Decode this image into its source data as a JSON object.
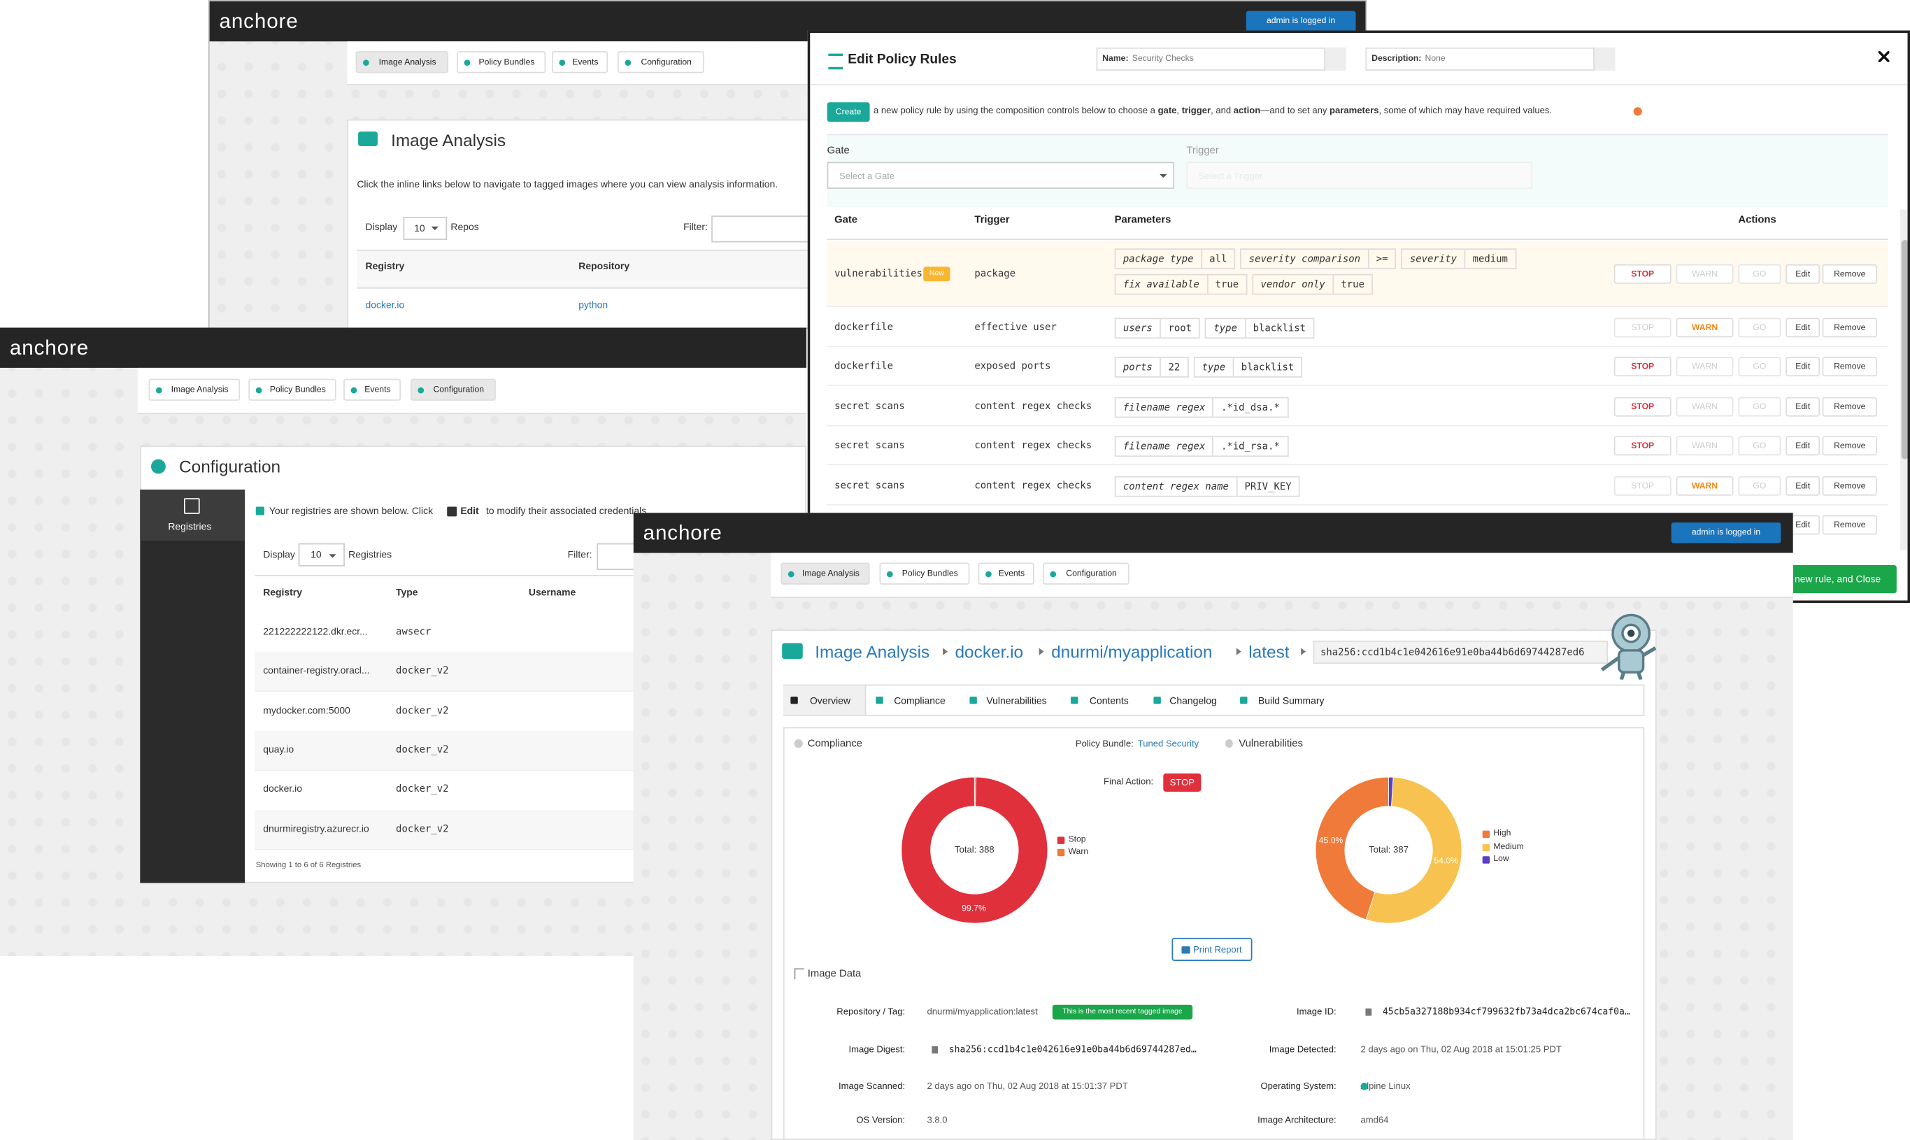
{
  "back": {
    "brand": "anchore",
    "user": "admin is logged in",
    "tabs": [
      "Image Analysis",
      "Policy Bundles",
      "Events",
      "Configuration"
    ],
    "title": "Image Analysis",
    "intro": "Click the inline links below to navigate to tagged images where you can view analysis information.",
    "display": "Display",
    "page_size": "10",
    "unit": "Repos",
    "filter": "Filter:",
    "columns": [
      "Registry",
      "Repository"
    ],
    "rows": [
      [
        "docker.io",
        "python"
      ]
    ]
  },
  "config": {
    "brand": "anchore",
    "tabs": [
      "Image Analysis",
      "Policy Bundles",
      "Events",
      "Configuration"
    ],
    "title": "Configuration",
    "sidebar": "Registries",
    "intro": [
      "Your registries are shown below. Click",
      "Edit",
      "to modify their associated credentials."
    ],
    "display": "Display",
    "page_size": "10",
    "unit": "Registries",
    "filter": "Filter:",
    "columns": [
      "Registry",
      "Type",
      "Username"
    ],
    "rows": [
      [
        "221222222122.dkr.ecr...",
        "awsecr"
      ],
      [
        "container-registry.oracl...",
        "docker_v2"
      ],
      [
        "mydocker.com:5000",
        "docker_v2"
      ],
      [
        "quay.io",
        "docker_v2"
      ],
      [
        "docker.io",
        "docker_v2"
      ],
      [
        "dnurmiregistry.azurecr.io",
        "docker_v2"
      ]
    ],
    "footer": "Showing 1 to 6 of 6 Registries"
  },
  "modal": {
    "title": "Edit Policy Rules",
    "name_label": "Name:",
    "name": "Security Checks",
    "desc_label": "Description:",
    "desc": "None",
    "create": "Create",
    "info": [
      {
        "text": " a new policy rule by using the composition controls below to choose a "
      },
      {
        "text": "gate",
        "bold": true
      },
      {
        "text": ", "
      },
      {
        "text": "trigger",
        "bold": true
      },
      {
        "text": ", and "
      },
      {
        "text": "action",
        "bold": true
      },
      {
        "text": "—and to set any "
      },
      {
        "text": "parameters",
        "bold": true
      },
      {
        "text": ", some of which may have required values."
      }
    ],
    "gate_label": "Gate",
    "gate_placeholder": "Select a Gate",
    "trigger_label": "Trigger",
    "trigger_placeholder": "Select a Trigger",
    "columns": [
      "Gate",
      "Trigger",
      "Parameters",
      "Actions"
    ],
    "actions": [
      "STOP",
      "WARN",
      "GO",
      "Edit",
      "Remove"
    ],
    "new_badge": "New",
    "rules": [
      {
        "gate": "vulnerabilities",
        "trigger": "package",
        "new": true,
        "action": "STOP",
        "params": [
          {
            "name": "package type",
            "value": "all"
          },
          {
            "name": "severity comparison",
            "value": ">="
          },
          {
            "name": "severity",
            "value": "medium"
          },
          {
            "name": "fix available",
            "value": "true"
          },
          {
            "name": "vendor only",
            "value": "true"
          }
        ]
      },
      {
        "gate": "dockerfile",
        "trigger": "effective user",
        "action": "WARN",
        "params": [
          {
            "name": "users",
            "value": "root"
          },
          {
            "name": "type",
            "value": "blacklist"
          }
        ]
      },
      {
        "gate": "dockerfile",
        "trigger": "exposed ports",
        "action": "STOP",
        "params": [
          {
            "name": "ports",
            "value": "22"
          },
          {
            "name": "type",
            "value": "blacklist"
          }
        ]
      },
      {
        "gate": "secret scans",
        "trigger": "content regex checks",
        "action": "STOP",
        "params": [
          {
            "name": "filename regex",
            "value": ".*id_dsa.*"
          }
        ]
      },
      {
        "gate": "secret scans",
        "trigger": "content regex checks",
        "action": "STOP",
        "params": [
          {
            "name": "filename regex",
            "value": ".*id_rsa.*"
          }
        ]
      },
      {
        "gate": "secret scans",
        "trigger": "content regex checks",
        "action": "WARN",
        "params": [
          {
            "name": "content regex name",
            "value": "PRIV_KEY"
          }
        ]
      }
    ],
    "save": "new rule, and Close"
  },
  "detail": {
    "brand": "anchore",
    "user": "admin is logged in",
    "tabs": [
      "Image Analysis",
      "Policy Bundles",
      "Events",
      "Configuration"
    ],
    "breadcrumb": [
      "Image Analysis",
      "docker.io",
      "dnurmi/myapplication",
      "latest"
    ],
    "digest": "sha256:ccd1b4c1e042616e91e0ba44b6d69744287ed6",
    "subtabs": [
      "Overview",
      "Compliance",
      "Vulnerabilities",
      "Contents",
      "Changelog",
      "Build Summary"
    ],
    "compliance": {
      "heading": "Compliance",
      "bundle_label": "Policy Bundle:",
      "bundle": "Tuned Security",
      "final_label": "Final Action:",
      "final": "STOP",
      "total": "Total: 388",
      "segments": [
        {
          "name": "Stop",
          "value": 99.7,
          "label": "99.7%",
          "color": "#e0303c"
        },
        {
          "name": "Warn",
          "value": 0.3,
          "color": "#f07a3a"
        }
      ]
    },
    "vulnerabilities": {
      "heading": "Vulnerabilities",
      "total": "Total: 387",
      "segments": [
        {
          "name": "High",
          "value": 45.0,
          "label": "45.0%",
          "color": "#f07a3a"
        },
        {
          "name": "Medium",
          "value": 54.0,
          "label": "54.0%",
          "color": "#f7c24f"
        },
        {
          "name": "Low",
          "value": 1.0,
          "color": "#5b3fc4"
        }
      ]
    },
    "print": "Print Report",
    "image_data": {
      "heading": "Image Data",
      "fields": [
        {
          "label": "Repository / Tag:",
          "value": "dnurmi/myapplication:latest",
          "badge": "This is the most recent tagged image"
        },
        {
          "label": "Image ID:",
          "value": "45cb5a327188b934cf799632fb73a4dca2bc674caf0a…",
          "mono": true
        },
        {
          "label": "Image Digest:",
          "value": "sha256:ccd1b4c1e042616e91e0ba44b6d69744287ed…",
          "mono": true
        },
        {
          "label": "Image Detected:",
          "value": "2 days ago on Thu, 02 Aug 2018 at 15:01:25 PDT"
        },
        {
          "label": "Image Scanned:",
          "value": "2 days ago on Thu, 02 Aug 2018 at 15:01:37 PDT"
        },
        {
          "label": "Operating System:",
          "value": "Alpine Linux"
        },
        {
          "label": "OS Version:",
          "value": "3.8.0"
        },
        {
          "label": "Image Architecture:",
          "value": "amd64"
        }
      ]
    }
  }
}
